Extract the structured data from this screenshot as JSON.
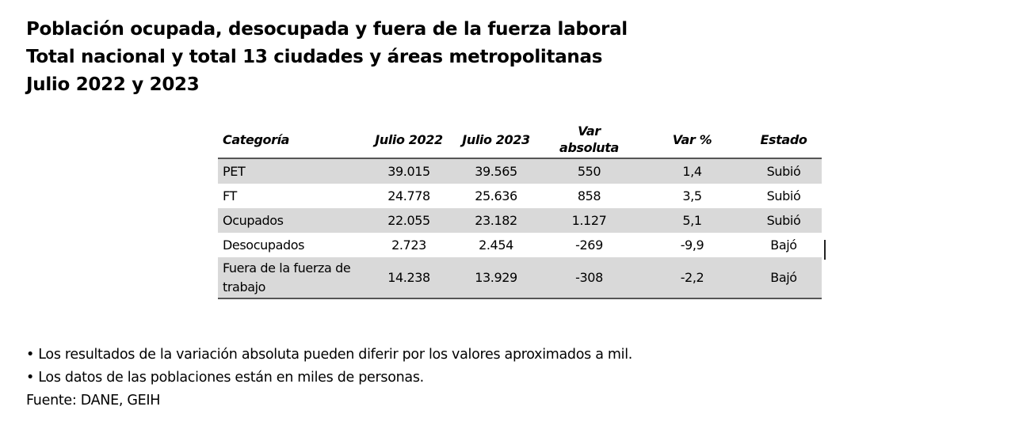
{
  "title": {
    "line1": "Población ocupada, desocupada y fuera de la fuerza laboral",
    "line2": "Total nacional y total 13 ciudades y áreas metropolitanas",
    "line3": "Julio 2022 y 2023"
  },
  "table": {
    "headers": [
      "Categoría",
      "Julio 2022",
      "Julio 2023",
      "Var absoluta",
      "Var %",
      "Estado"
    ],
    "header_var_abs": [
      "Var",
      "absoluta"
    ],
    "rows": [
      [
        "PET",
        "39.015",
        "39.565",
        "550",
        "1,4",
        "Subió"
      ],
      [
        "FT",
        "24.778",
        "25.636",
        "858",
        "3,5",
        "Subió"
      ],
      [
        "Ocupados",
        "22.055",
        "23.182",
        "1.127",
        "5,1",
        "Subió"
      ],
      [
        "Desocupados",
        "2.723",
        "2.454",
        "-269",
        "-9,9",
        "Bajó"
      ],
      [
        "Fuera de la fuerza de trabajo",
        "14.238",
        "13.929",
        "-308",
        "-2,2",
        "Bajó"
      ]
    ],
    "row_stripe_color": "#d9d9d9"
  },
  "notes": {
    "note1": "•  Los resultados de la variación absoluta pueden diferir por los valores aproximados a mil.",
    "note2": "• Los datos de las poblaciones están en miles de personas.",
    "source": "Fuente: DANE, GEIH"
  }
}
